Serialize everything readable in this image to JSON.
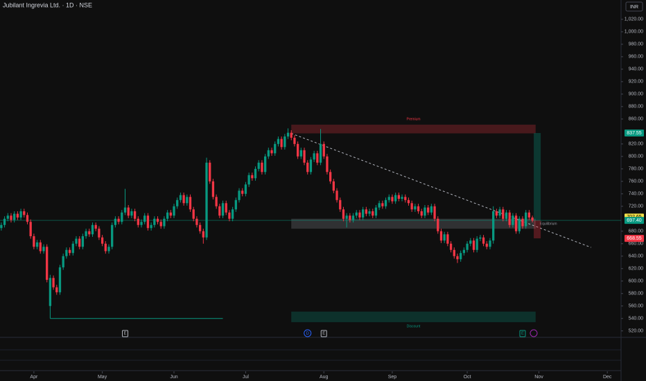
{
  "chart_data": {
    "type": "candlestick",
    "title": "Jubilant Ingrevia Ltd. · 1D · NSE",
    "currency": "INR",
    "up_color": "#089981",
    "down_color": "#f23645",
    "xlim": [
      -0.4,
      190
    ],
    "xticks": [
      {
        "value": 10,
        "label": "Apr"
      },
      {
        "value": 31,
        "label": "May"
      },
      {
        "value": 53,
        "label": "Jun"
      },
      {
        "value": 75,
        "label": "Jul"
      },
      {
        "value": 99,
        "label": "Aug"
      },
      {
        "value": 120,
        "label": "Sep"
      },
      {
        "value": 143,
        "label": "Oct"
      },
      {
        "value": 165,
        "label": "Nov"
      },
      {
        "value": 186,
        "label": "Dec"
      }
    ],
    "ylim": [
      513,
      1031
    ],
    "yticks": [
      {
        "value": 520,
        "label": "520.00"
      },
      {
        "value": 540,
        "label": "540.00"
      },
      {
        "value": 560,
        "label": "560.00"
      },
      {
        "value": 580,
        "label": "580.00"
      },
      {
        "value": 600,
        "label": "600.00"
      },
      {
        "value": 620,
        "label": "620.00"
      },
      {
        "value": 640,
        "label": "640.00"
      },
      {
        "value": 660,
        "label": "660.00"
      },
      {
        "value": 680,
        "label": "680.00"
      },
      {
        "value": 720,
        "label": "720.00"
      },
      {
        "value": 740,
        "label": "740.00"
      },
      {
        "value": 760,
        "label": "760.00"
      },
      {
        "value": 780,
        "label": "780.00"
      },
      {
        "value": 800,
        "label": "800.00"
      },
      {
        "value": 820,
        "label": "820.00"
      },
      {
        "value": 860,
        "label": "860.00"
      },
      {
        "value": 880,
        "label": "880.00"
      },
      {
        "value": 900,
        "label": "900.00"
      },
      {
        "value": 920,
        "label": "920.00"
      },
      {
        "value": 940,
        "label": "940.00"
      },
      {
        "value": 960,
        "label": "960.00"
      },
      {
        "value": 980,
        "label": "980.00"
      },
      {
        "value": 1000,
        "label": "1,000.00"
      },
      {
        "value": 1020,
        "label": "1,020.00"
      }
    ],
    "candles": [
      [
        685,
        694,
        681,
        690
      ],
      [
        690,
        704,
        686,
        700
      ],
      [
        700,
        709,
        696,
        705
      ],
      [
        705,
        709,
        694,
        698
      ],
      [
        698,
        712,
        694,
        708
      ],
      [
        708,
        712,
        698,
        702
      ],
      [
        702,
        716,
        698,
        712
      ],
      [
        712,
        716,
        702,
        706
      ],
      [
        706,
        710,
        691,
        695
      ],
      [
        695,
        699,
        668,
        672
      ],
      [
        672,
        676,
        651,
        655
      ],
      [
        655,
        666,
        651,
        662
      ],
      [
        662,
        666,
        644,
        648
      ],
      [
        648,
        659,
        644,
        655
      ],
      [
        655,
        659,
        598,
        602
      ],
      [
        560,
        610,
        540,
        605
      ],
      [
        605,
        609,
        586,
        590
      ],
      [
        590,
        594,
        578,
        582
      ],
      [
        582,
        626,
        578,
        622
      ],
      [
        622,
        644,
        618,
        640
      ],
      [
        640,
        654,
        636,
        650
      ],
      [
        650,
        654,
        641,
        645
      ],
      [
        645,
        664,
        641,
        660
      ],
      [
        660,
        672,
        656,
        668
      ],
      [
        668,
        672,
        651,
        655
      ],
      [
        655,
        676,
        651,
        672
      ],
      [
        672,
        684,
        668,
        680
      ],
      [
        680,
        684,
        671,
        675
      ],
      [
        675,
        694,
        671,
        690
      ],
      [
        690,
        694,
        680,
        684
      ],
      [
        684,
        688,
        666,
        670
      ],
      [
        670,
        674,
        656,
        660
      ],
      [
        660,
        664,
        644,
        648
      ],
      [
        648,
        659,
        644,
        655
      ],
      [
        655,
        694,
        651,
        690
      ],
      [
        690,
        704,
        686,
        700
      ],
      [
        700,
        704,
        691,
        695
      ],
      [
        695,
        714,
        691,
        710
      ],
      [
        710,
        748,
        706,
        718
      ],
      [
        718,
        722,
        701,
        705
      ],
      [
        705,
        716,
        701,
        712
      ],
      [
        712,
        716,
        696,
        700
      ],
      [
        700,
        704,
        686,
        690
      ],
      [
        690,
        699,
        686,
        695
      ],
      [
        695,
        709,
        691,
        705
      ],
      [
        705,
        709,
        681,
        685
      ],
      [
        685,
        694,
        681,
        690
      ],
      [
        690,
        704,
        686,
        700
      ],
      [
        700,
        704,
        691,
        695
      ],
      [
        695,
        699,
        684,
        688
      ],
      [
        688,
        704,
        684,
        700
      ],
      [
        700,
        714,
        696,
        710
      ],
      [
        710,
        714,
        701,
        705
      ],
      [
        705,
        724,
        701,
        720
      ],
      [
        720,
        734,
        716,
        730
      ],
      [
        730,
        742,
        726,
        738
      ],
      [
        738,
        742,
        721,
        725
      ],
      [
        725,
        739,
        721,
        735
      ],
      [
        735,
        739,
        711,
        715
      ],
      [
        715,
        719,
        696,
        700
      ],
      [
        700,
        704,
        686,
        690
      ],
      [
        690,
        694,
        676,
        680
      ],
      [
        680,
        684,
        660,
        670
      ],
      [
        670,
        798,
        666,
        790
      ],
      [
        790,
        794,
        756,
        760
      ],
      [
        760,
        764,
        731,
        735
      ],
      [
        735,
        739,
        716,
        720
      ],
      [
        720,
        724,
        701,
        705
      ],
      [
        705,
        729,
        701,
        725
      ],
      [
        725,
        729,
        706,
        710
      ],
      [
        710,
        714,
        696,
        700
      ],
      [
        700,
        719,
        696,
        715
      ],
      [
        715,
        734,
        711,
        730
      ],
      [
        730,
        749,
        726,
        745
      ],
      [
        745,
        749,
        736,
        740
      ],
      [
        740,
        759,
        736,
        755
      ],
      [
        755,
        774,
        751,
        770
      ],
      [
        770,
        774,
        761,
        765
      ],
      [
        765,
        784,
        761,
        780
      ],
      [
        780,
        794,
        776,
        790
      ],
      [
        790,
        794,
        771,
        775
      ],
      [
        775,
        804,
        771,
        800
      ],
      [
        800,
        814,
        796,
        810
      ],
      [
        810,
        814,
        801,
        805
      ],
      [
        805,
        824,
        801,
        820
      ],
      [
        820,
        832,
        816,
        828
      ],
      [
        828,
        832,
        811,
        815
      ],
      [
        815,
        836,
        811,
        832
      ],
      [
        832,
        845,
        828,
        838
      ],
      [
        838,
        842,
        826,
        830
      ],
      [
        830,
        834,
        816,
        820
      ],
      [
        820,
        824,
        796,
        800
      ],
      [
        800,
        814,
        796,
        810
      ],
      [
        810,
        814,
        786,
        790
      ],
      [
        790,
        794,
        771,
        775
      ],
      [
        775,
        799,
        771,
        795
      ],
      [
        795,
        809,
        791,
        805
      ],
      [
        805,
        809,
        786,
        790
      ],
      [
        790,
        844,
        786,
        820
      ],
      [
        820,
        824,
        796,
        800
      ],
      [
        800,
        804,
        771,
        775
      ],
      [
        775,
        779,
        756,
        760
      ],
      [
        760,
        764,
        741,
        745
      ],
      [
        745,
        749,
        726,
        730
      ],
      [
        730,
        734,
        711,
        715
      ],
      [
        715,
        719,
        696,
        700
      ],
      [
        700,
        709,
        686,
        705
      ],
      [
        705,
        709,
        694,
        698
      ],
      [
        698,
        709,
        694,
        705
      ],
      [
        705,
        714,
        701,
        710
      ],
      [
        710,
        714,
        698,
        702
      ],
      [
        702,
        719,
        698,
        715
      ],
      [
        715,
        719,
        704,
        708
      ],
      [
        708,
        716,
        704,
        712
      ],
      [
        712,
        716,
        701,
        705
      ],
      [
        705,
        722,
        701,
        718
      ],
      [
        718,
        729,
        714,
        725
      ],
      [
        725,
        729,
        716,
        720
      ],
      [
        720,
        734,
        716,
        730
      ],
      [
        730,
        739,
        726,
        735
      ],
      [
        735,
        739,
        724,
        728
      ],
      [
        728,
        742,
        724,
        738
      ],
      [
        738,
        742,
        728,
        732
      ],
      [
        732,
        739,
        728,
        735
      ],
      [
        735,
        739,
        726,
        730
      ],
      [
        730,
        734,
        721,
        725
      ],
      [
        725,
        729,
        711,
        715
      ],
      [
        715,
        724,
        711,
        720
      ],
      [
        720,
        724,
        708,
        712
      ],
      [
        712,
        716,
        701,
        705
      ],
      [
        705,
        722,
        701,
        718
      ],
      [
        718,
        722,
        706,
        710
      ],
      [
        710,
        724,
        706,
        720
      ],
      [
        720,
        724,
        696,
        700
      ],
      [
        700,
        704,
        676,
        680
      ],
      [
        680,
        684,
        661,
        665
      ],
      [
        665,
        679,
        661,
        675
      ],
      [
        675,
        679,
        656,
        660
      ],
      [
        660,
        664,
        646,
        650
      ],
      [
        650,
        654,
        636,
        640
      ],
      [
        640,
        644,
        629,
        635
      ],
      [
        635,
        649,
        631,
        645
      ],
      [
        645,
        654,
        641,
        650
      ],
      [
        650,
        664,
        646,
        660
      ],
      [
        660,
        669,
        656,
        665
      ],
      [
        665,
        669,
        646,
        650
      ],
      [
        650,
        672,
        646,
        668
      ],
      [
        668,
        674,
        664,
        670
      ],
      [
        670,
        674,
        656,
        660
      ],
      [
        660,
        664,
        651,
        655
      ],
      [
        655,
        669,
        651,
        665
      ],
      [
        665,
        720,
        660,
        712
      ],
      [
        712,
        716,
        701,
        705
      ],
      [
        705,
        719,
        701,
        715
      ],
      [
        715,
        719,
        696,
        700
      ],
      [
        700,
        714,
        696,
        710
      ],
      [
        710,
        714,
        686,
        690
      ],
      [
        690,
        709,
        686,
        705
      ],
      [
        705,
        709,
        676,
        680
      ],
      [
        680,
        704,
        676,
        700
      ],
      [
        700,
        704,
        684,
        688
      ],
      [
        688,
        714,
        684,
        710
      ],
      [
        710,
        714,
        698,
        702
      ],
      [
        702,
        705,
        694,
        697
      ]
    ],
    "zones": [
      {
        "label": "Premium",
        "low": 837,
        "high": 851,
        "start": 89,
        "end": 164,
        "color": "#f23645"
      },
      {
        "label": "Equilibrium",
        "low": 684,
        "high": 700,
        "start": 89,
        "end": 164,
        "color": "#9598a1"
      },
      {
        "label": "Discount",
        "low": 534,
        "high": 551,
        "start": 89,
        "end": 164,
        "color": "#089981"
      }
    ],
    "trendline": {
      "x": [
        89,
        181
      ],
      "y": [
        837,
        654
      ]
    },
    "support_line": {
      "x": [
        15,
        68
      ],
      "y": [
        540,
        540
      ]
    },
    "price_labels": [
      {
        "value": 837.55,
        "label": "837.55",
        "color": "#089981"
      },
      {
        "value": 702.65,
        "label": "702.65",
        "color": "#f7e34a"
      },
      {
        "value": 697.4,
        "label": "697.40",
        "color": "#089981"
      },
      {
        "value": 668.55,
        "label": "668.55",
        "color": "#f23645"
      }
    ],
    "events": [
      {
        "index": 38,
        "label": "E"
      },
      {
        "index": 94,
        "label": "D"
      },
      {
        "index": 99,
        "label": "E"
      },
      {
        "index": 160,
        "label": "E"
      }
    ]
  }
}
